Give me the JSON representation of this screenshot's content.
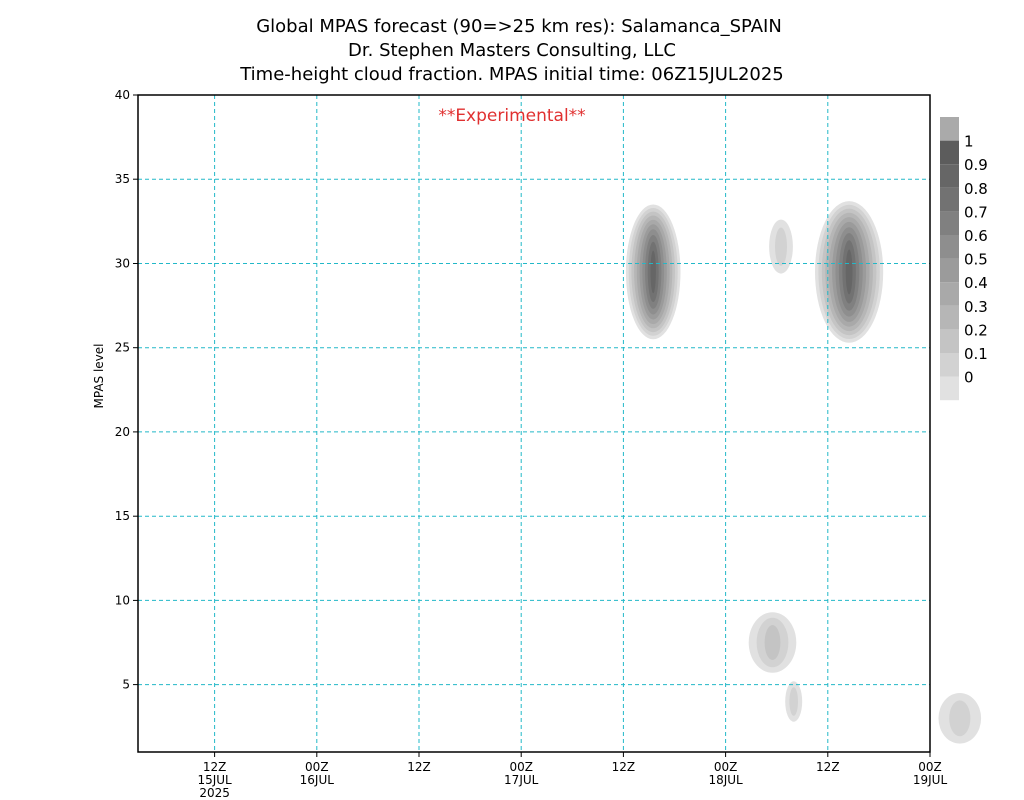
{
  "chart_data": {
    "type": "heatmap",
    "title_lines": [
      "Global MPAS forecast (90=>25 km res): Salamanca_SPAIN",
      "Dr. Stephen Masters Consulting, LLC",
      "Time-height cloud fraction.   MPAS initial time: 06Z15JUL2025"
    ],
    "annotation": "**Experimental**",
    "annotation_color": "#e03030",
    "ylabel": "MPAS level",
    "xlabel": "",
    "x_range_hours": [
      -3,
      90
    ],
    "y_range": [
      1,
      40
    ],
    "grid": true,
    "grid_color": "#22b8c8",
    "y_ticks": [
      5,
      10,
      15,
      20,
      25,
      30,
      35,
      40
    ],
    "x_ticks": [
      {
        "hour": 6,
        "label": [
          "12Z",
          "15JUL",
          "2025"
        ]
      },
      {
        "hour": 18,
        "label": [
          "00Z",
          "16JUL"
        ]
      },
      {
        "hour": 30,
        "label": [
          "12Z"
        ]
      },
      {
        "hour": 42,
        "label": [
          "00Z",
          "17JUL"
        ]
      },
      {
        "hour": 54,
        "label": [
          "12Z"
        ]
      },
      {
        "hour": 66,
        "label": [
          "00Z",
          "18JUL"
        ]
      },
      {
        "hour": 78,
        "label": [
          "12Z"
        ]
      },
      {
        "hour": 90,
        "label": [
          "00Z",
          "19JUL"
        ]
      }
    ],
    "colorbar": {
      "labels": [
        "0",
        "0.1",
        "0.2",
        "0.3",
        "0.4",
        "0.5",
        "0.6",
        "0.7",
        "0.8",
        "0.9",
        "1"
      ],
      "colors": [
        "#e1e1e1",
        "#d2d2d2",
        "#c4c4c4",
        "#b6b6b6",
        "#a9a9a9",
        "#9b9b9b",
        "#8e8e8e",
        "#808080",
        "#727272",
        "#666666",
        "#5c5c5c",
        "#aaaaaa"
      ]
    },
    "cloud_features": [
      {
        "name": "cloud-16jul-upper",
        "t_hour": 57.5,
        "level": 29.5,
        "t_spread": 3.2,
        "level_spread": 4.0,
        "max_fraction": 0.95
      },
      {
        "name": "cloud-17jul-upper-small",
        "t_hour": 72.5,
        "level": 31.0,
        "t_spread": 1.4,
        "level_spread": 1.6,
        "max_fraction": 0.15
      },
      {
        "name": "cloud-17jul-upper-main",
        "t_hour": 80.5,
        "level": 29.5,
        "t_spread": 4.0,
        "level_spread": 4.2,
        "max_fraction": 0.98
      },
      {
        "name": "cloud-17jul-low",
        "t_hour": 71.5,
        "level": 7.5,
        "t_spread": 2.8,
        "level_spread": 1.8,
        "max_fraction": 0.25
      },
      {
        "name": "cloud-17jul-low-small",
        "t_hour": 74.0,
        "level": 4.0,
        "t_spread": 1.0,
        "level_spread": 1.2,
        "max_fraction": 0.2
      },
      {
        "name": "cloud-18jul-edge",
        "t_hour": 93.5,
        "level": 3.0,
        "t_spread": 2.5,
        "level_spread": 1.5,
        "max_fraction": 0.2
      }
    ]
  }
}
